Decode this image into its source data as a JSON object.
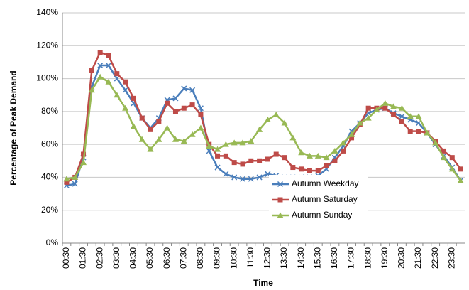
{
  "chart_data": {
    "type": "line",
    "y_label": "Percentage of Peak Demand",
    "x_label": "Time",
    "categories": [
      "00:30",
      null,
      "01:30",
      null,
      "02:30",
      null,
      "03:30",
      null,
      "04:30",
      null,
      "05:30",
      null,
      "06:30",
      null,
      "07:30",
      null,
      "08:30",
      null,
      "09:30",
      null,
      "10:30",
      null,
      "11:30",
      null,
      "12:30",
      null,
      "13:30",
      null,
      "14:30",
      null,
      "15:30",
      null,
      "16:30",
      null,
      "17:30",
      null,
      "18:30",
      null,
      "19:30",
      null,
      "20:30",
      null,
      "21:30",
      null,
      "22:30",
      null,
      "23:30",
      null
    ],
    "series": [
      {
        "name": "Autumn Weekday",
        "color": "#4a7ebb",
        "marker": "x",
        "values": [
          35,
          36,
          52,
          95,
          108,
          108,
          100,
          93,
          85,
          76,
          70,
          76,
          87,
          88,
          94,
          93,
          82,
          56,
          46,
          42,
          40,
          39,
          39,
          40,
          42,
          41,
          40,
          40,
          40,
          40,
          41,
          45,
          52,
          59,
          68,
          73,
          79,
          81,
          82,
          79,
          77,
          75,
          73,
          67,
          60,
          53,
          46,
          38
        ]
      },
      {
        "name": "Autumn Saturday",
        "color": "#be4b48",
        "marker": "square",
        "values": [
          37,
          40,
          54,
          105,
          116,
          114,
          103,
          98,
          88,
          76,
          69,
          74,
          85,
          80,
          82,
          84,
          78,
          60,
          53,
          53,
          49,
          48,
          50,
          50,
          51,
          54,
          52,
          46,
          45,
          44,
          44,
          47,
          50,
          56,
          64,
          72,
          82,
          82,
          82,
          78,
          74,
          68,
          68,
          67,
          62,
          56,
          52,
          45
        ]
      },
      {
        "name": "Autumn Sunday",
        "color": "#98b954",
        "marker": "triangle",
        "values": [
          39,
          40,
          49,
          93,
          101,
          98,
          90,
          82,
          71,
          63,
          57,
          63,
          70,
          63,
          62,
          66,
          70,
          59,
          57,
          60,
          61,
          61,
          62,
          69,
          75,
          78,
          73,
          64,
          55,
          53,
          53,
          52,
          56,
          61,
          66,
          73,
          76,
          81,
          85,
          83,
          82,
          77,
          77,
          67,
          61,
          52,
          45,
          38
        ]
      }
    ],
    "ylim": [
      0,
      140
    ],
    "yticks": [
      {
        "value": 0,
        "label": "0%"
      },
      {
        "value": 20,
        "label": "20%"
      },
      {
        "value": 40,
        "label": "40%"
      },
      {
        "value": 60,
        "label": "60%"
      },
      {
        "value": 80,
        "label": "80%"
      },
      {
        "value": 100,
        "label": "100%"
      },
      {
        "value": 120,
        "label": "120%"
      },
      {
        "value": 140,
        "label": "140%"
      }
    ],
    "grid": true
  }
}
